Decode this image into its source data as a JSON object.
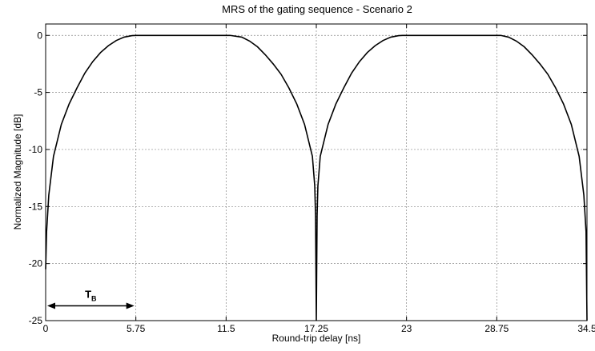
{
  "chart_data": {
    "type": "line",
    "title": "MRS of the gating sequence - Scenario 2",
    "xlabel": "Round-trip delay [ns]",
    "ylabel": "Normalized Magnitude [dB]",
    "xlim": [
      0,
      34.5
    ],
    "ylim": [
      -25,
      1
    ],
    "x_ticks": [
      0,
      5.75,
      11.5,
      17.25,
      23,
      28.75,
      34.5
    ],
    "x_tick_labels": [
      "0",
      "5.75",
      "11.5",
      "17.25",
      "23",
      "28.75",
      "34.5"
    ],
    "y_ticks": [
      0,
      -5,
      -10,
      -15,
      -20,
      -25
    ],
    "y_tick_labels": [
      "0",
      "-5",
      "-10",
      "-15",
      "-20",
      "-25"
    ],
    "grid": true,
    "series": [
      {
        "x": [
          0,
          0.06,
          0.2,
          0.5,
          1,
          1.5,
          2,
          2.5,
          3,
          3.5,
          4,
          4.5,
          5,
          5.5,
          5.75,
          6,
          11.5,
          11.75,
          12.5,
          13,
          13.5,
          14,
          14.5,
          15,
          15.5,
          16,
          16.5,
          17,
          17.15,
          17.2,
          17.25,
          17.3,
          17.35,
          17.5,
          18,
          18.5,
          19,
          19.5,
          20,
          20.5,
          21,
          21.5,
          22,
          22.5,
          22.75,
          23,
          28.75,
          29,
          29.5,
          30,
          30.5,
          31,
          31.5,
          32,
          32.5,
          33,
          33.5,
          34,
          34.3,
          34.44,
          34.5
        ],
        "y": [
          -20.5,
          -17.2,
          -14,
          -10.6,
          -7.8,
          -6.0,
          -4.6,
          -3.3,
          -2.3,
          -1.5,
          -0.9,
          -0.45,
          -0.15,
          -0.02,
          0,
          0,
          0,
          0,
          -0.15,
          -0.5,
          -1.0,
          -1.7,
          -2.5,
          -3.4,
          -4.6,
          -6.0,
          -7.8,
          -10.6,
          -13.2,
          -15.8,
          -25,
          -15.8,
          -13.2,
          -10.6,
          -7.8,
          -6.0,
          -4.6,
          -3.3,
          -2.3,
          -1.5,
          -0.9,
          -0.45,
          -0.15,
          -0.02,
          0,
          0,
          0,
          0,
          -0.15,
          -0.5,
          -1.0,
          -1.7,
          -2.5,
          -3.4,
          -4.6,
          -6.0,
          -7.8,
          -10.6,
          -14,
          -17.2,
          -25
        ]
      }
    ],
    "annotation": {
      "label": "T",
      "subscript": "B",
      "x_from": 0,
      "x_to": 5.75,
      "y": -23.7
    }
  }
}
